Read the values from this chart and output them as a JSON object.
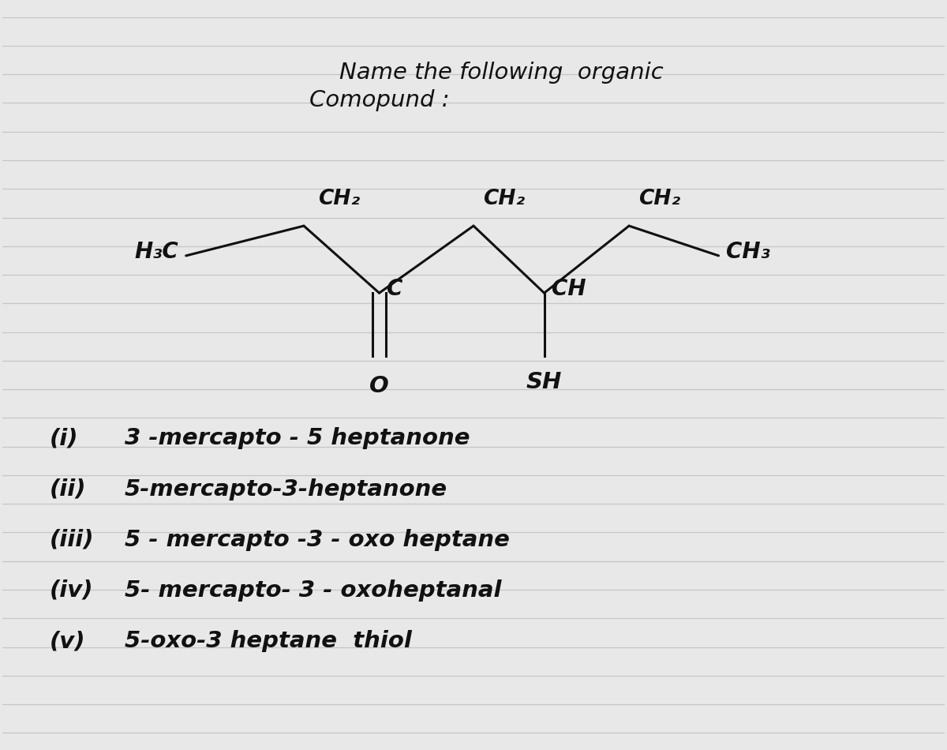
{
  "bg_color": "#e8e8e8",
  "line_color": "#c0c0c0",
  "text_color": "#111111",
  "title_line1": "Name the following  organic",
  "title_line2": "Comopund :",
  "figsize": [
    12,
    9.5
  ],
  "dpi": 100,
  "options": [
    [
      "(i)",
      "3 -mercapto - 5 heptanone"
    ],
    [
      "(ii)",
      "5-mercapto-3-heptanone"
    ],
    [
      "(iii)",
      "5 - mercapto -3 - oxo heptane"
    ],
    [
      "(iv)",
      "5- mercapto- 3 - oxoheptanal"
    ],
    [
      "(v)",
      "5-oxo-3 heptane  thiol"
    ]
  ]
}
